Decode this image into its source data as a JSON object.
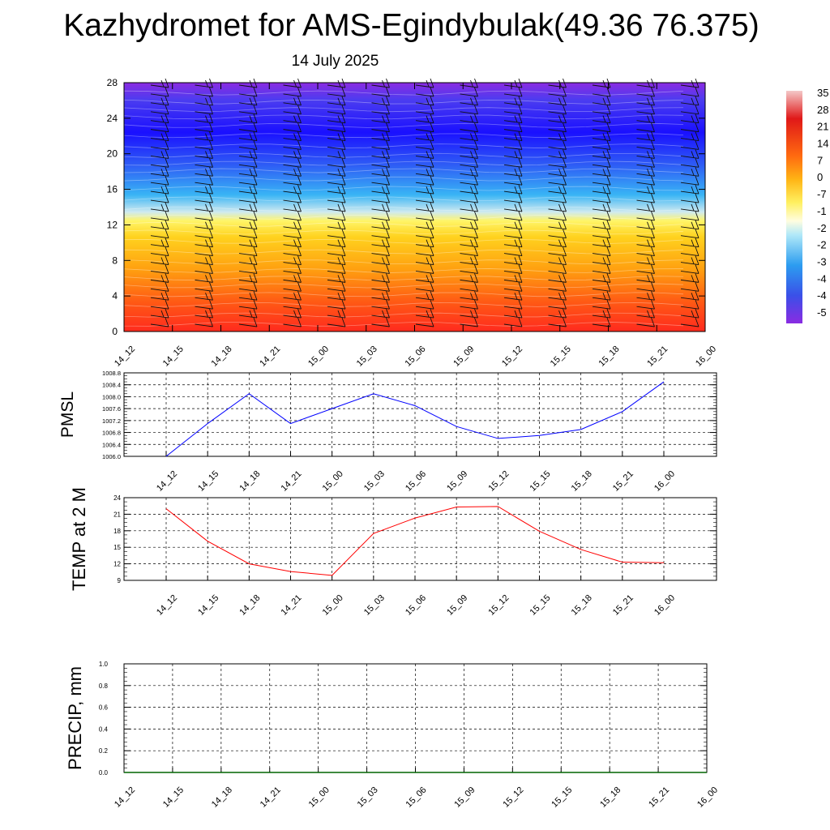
{
  "title": "Kazhydromet for AMS-Egindybulak(49.36 76.375)",
  "subtitle": "14 July 2025",
  "colors": {
    "pmsl_line": "#0000ff",
    "temp_line": "#ff0000",
    "precip_line": "#006400",
    "axis": "#000000"
  },
  "chart_data": [
    {
      "type": "heatmap",
      "y_ticks": [
        "0",
        "4",
        "8",
        "12",
        "16",
        "20",
        "24",
        "28"
      ],
      "ylim": [
        0,
        28
      ],
      "x_ticks": [
        "14_12",
        "14_15",
        "14_18",
        "14_21",
        "15_00",
        "15_03",
        "15_06",
        "15_09",
        "15_12",
        "15_15",
        "15_18",
        "15_21",
        "16_00"
      ],
      "colorbar_labels": [
        "35",
        "28",
        "21",
        "14",
        "7",
        "0",
        "-7",
        "-1",
        "-2",
        "-2",
        "-3",
        "-4",
        "-4",
        "-5"
      ],
      "overlay": "wind barbs"
    },
    {
      "type": "line",
      "ylabel": "PMSL",
      "ylim": [
        1006.0,
        1008.8
      ],
      "y_ticks": [
        "1006.0",
        "1006.4",
        "1006.8",
        "1007.2",
        "1007.6",
        "1008.0",
        "1008.4",
        "1008.8"
      ],
      "x": [
        "14_12",
        "14_15",
        "14_18",
        "14_21",
        "15_00",
        "15_03",
        "15_06",
        "15_09",
        "15_12",
        "15_15",
        "15_18",
        "15_21",
        "16_00"
      ],
      "series": [
        {
          "values": [
            1006.0,
            1007.1,
            1008.1,
            1007.1,
            1007.6,
            1008.1,
            1007.7,
            1007.0,
            1006.6,
            1006.7,
            1006.9,
            1007.5,
            1008.5
          ]
        }
      ]
    },
    {
      "type": "line",
      "ylabel": "TEMP at 2 M",
      "ylim": [
        9,
        24
      ],
      "y_ticks": [
        "9",
        "12",
        "15",
        "18",
        "21",
        "24"
      ],
      "x": [
        "14_12",
        "14_15",
        "14_18",
        "14_21",
        "15_00",
        "15_03",
        "15_06",
        "15_09",
        "15_12",
        "15_15",
        "15_18",
        "15_21",
        "16_00"
      ],
      "series": [
        {
          "values": [
            22.0,
            16.1,
            12.0,
            10.6,
            9.9,
            17.5,
            20.3,
            22.3,
            22.4,
            17.9,
            14.6,
            12.3,
            12.2
          ]
        }
      ]
    },
    {
      "type": "line",
      "ylabel": "PRECIP, mm",
      "ylim": [
        0.0,
        1.0
      ],
      "y_ticks": [
        "0.0",
        "0.2",
        "0.4",
        "0.6",
        "0.8",
        "1.0"
      ],
      "x_ticks": [
        "14_12",
        "14_15",
        "14_18",
        "14_21",
        "15_00",
        "15_03",
        "15_06",
        "15_09",
        "15_12",
        "15_15",
        "15_18",
        "15_21",
        "16_00"
      ],
      "series": [
        {
          "values": [
            0,
            0,
            0,
            0,
            0,
            0,
            0,
            0,
            0,
            0,
            0,
            0,
            0
          ]
        }
      ]
    }
  ]
}
